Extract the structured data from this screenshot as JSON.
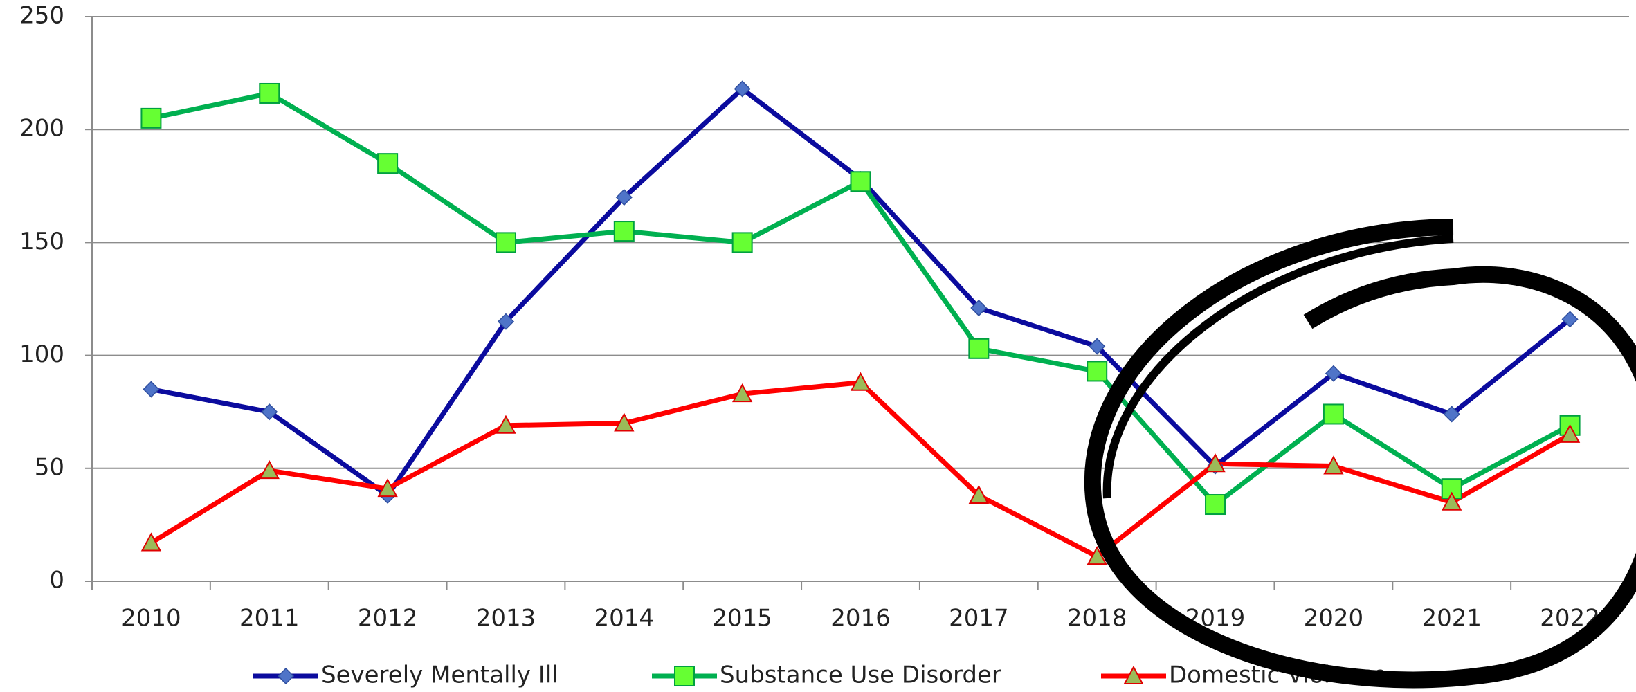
{
  "chart_data": {
    "type": "line",
    "categories": [
      "2010",
      "2011",
      "2012",
      "2013",
      "2014",
      "2015",
      "2016",
      "2017",
      "2018",
      "2019",
      "2020",
      "2021",
      "2022"
    ],
    "series": [
      {
        "name": "Severely Mentally Ill",
        "color": "#0b0b9e",
        "marker": "diamond",
        "marker_color": "#4f74c8",
        "values": [
          85,
          75,
          38,
          115,
          170,
          218,
          178,
          121,
          104,
          51,
          92,
          74,
          116
        ]
      },
      {
        "name": "Substance Use Disorder",
        "color": "#00b050",
        "marker": "square",
        "marker_color": "#66ff33",
        "values": [
          205,
          216,
          185,
          150,
          155,
          150,
          177,
          103,
          93,
          34,
          74,
          41,
          69
        ]
      },
      {
        "name": "Domestic Violence",
        "color": "#ff0000",
        "marker": "triangle",
        "marker_color": "#9bbb59",
        "values": [
          17,
          49,
          41,
          69,
          70,
          83,
          88,
          38,
          11,
          52,
          51,
          35,
          65
        ]
      }
    ],
    "ylim": [
      0,
      250
    ],
    "yticks": [
      0,
      50,
      100,
      150,
      200,
      250
    ],
    "grid": true,
    "legend": "bottom"
  }
}
